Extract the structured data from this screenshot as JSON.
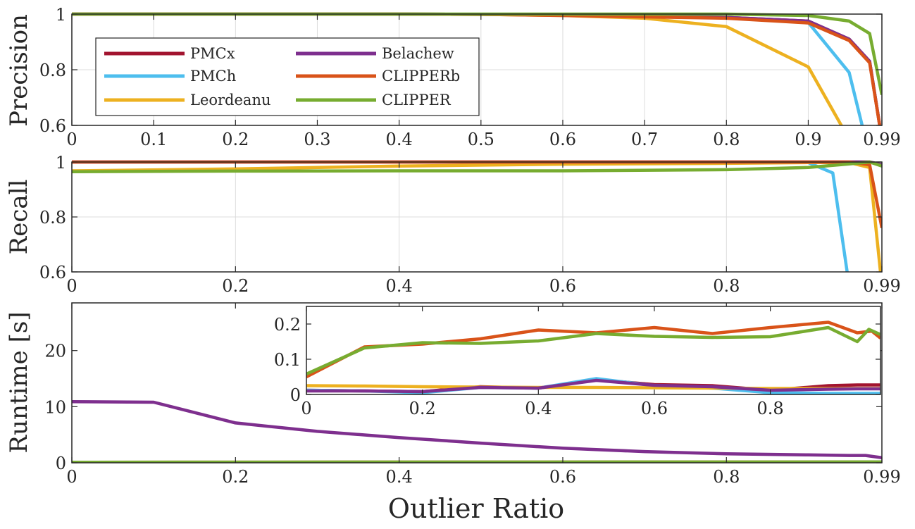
{
  "chart_data": [
    {
      "type": "line",
      "ylabel": "Precision",
      "xlabel": "",
      "ylim": [
        0.6,
        1
      ],
      "xlim": [
        0,
        0.99
      ],
      "grid": true,
      "x_ticks": [
        "0",
        "0.1",
        "0.2",
        "0.3",
        "0.4",
        "0.5",
        "0.6",
        "0.7",
        "0.8",
        "0.9",
        "0.99"
      ],
      "y_ticks": [
        "0.6",
        "0.8",
        "1"
      ],
      "legend": {
        "placement": "inside-upper-left",
        "columns": 2
      },
      "series": [
        {
          "name": "PMCx",
          "color": "#A2142F",
          "x": [
            0,
            0.1,
            0.2,
            0.3,
            0.4,
            0.5,
            0.6,
            0.7,
            0.8,
            0.9,
            0.95,
            0.975,
            0.99
          ],
          "y": [
            1,
            1,
            1,
            1,
            1,
            0.999,
            0.997,
            0.993,
            0.988,
            0.975,
            0.91,
            0.83,
            0.55
          ]
        },
        {
          "name": "PMCh",
          "color": "#4DBEEE",
          "x": [
            0,
            0.1,
            0.2,
            0.3,
            0.4,
            0.5,
            0.6,
            0.7,
            0.8,
            0.9,
            0.95,
            0.97
          ],
          "y": [
            1,
            1,
            1,
            1,
            1,
            0.999,
            0.997,
            0.993,
            0.988,
            0.97,
            0.79,
            0.55
          ]
        },
        {
          "name": "Leordeanu",
          "color": "#EDB120",
          "x": [
            0,
            0.1,
            0.2,
            0.3,
            0.4,
            0.5,
            0.6,
            0.7,
            0.8,
            0.9,
            0.95
          ],
          "y": [
            1,
            1,
            1,
            1,
            1,
            0.999,
            0.995,
            0.985,
            0.955,
            0.81,
            0.55
          ]
        },
        {
          "name": "Belachew",
          "color": "#7E2F8E",
          "x": [
            0,
            0.1,
            0.2,
            0.3,
            0.4,
            0.5,
            0.6,
            0.7,
            0.8,
            0.9,
            0.95,
            0.975,
            0.99
          ],
          "y": [
            1,
            1,
            1,
            1,
            1,
            0.999,
            0.997,
            0.993,
            0.988,
            0.975,
            0.91,
            0.83,
            0.55
          ]
        },
        {
          "name": "CLIPPERb",
          "color": "#D95319",
          "x": [
            0,
            0.1,
            0.2,
            0.3,
            0.4,
            0.5,
            0.6,
            0.7,
            0.8,
            0.9,
            0.95,
            0.975,
            0.99
          ],
          "y": [
            1,
            1,
            1,
            1,
            1,
            0.999,
            0.995,
            0.99,
            0.985,
            0.968,
            0.905,
            0.825,
            0.55
          ]
        },
        {
          "name": "CLIPPER",
          "color": "#77AC30",
          "x": [
            0,
            0.1,
            0.2,
            0.3,
            0.4,
            0.5,
            0.6,
            0.7,
            0.8,
            0.9,
            0.95,
            0.975,
            0.99
          ],
          "y": [
            1,
            1,
            1,
            1,
            1,
            1,
            1,
            1,
            1,
            0.995,
            0.975,
            0.93,
            0.71
          ]
        }
      ]
    },
    {
      "type": "line",
      "ylabel": "Recall",
      "xlabel": "",
      "ylim": [
        0.6,
        1
      ],
      "xlim": [
        0,
        0.99
      ],
      "grid": true,
      "x_ticks": [
        "0",
        "0.2",
        "0.4",
        "0.6",
        "0.8",
        "0.99"
      ],
      "y_ticks": [
        "0.6",
        "0.8",
        "1"
      ],
      "series": [
        {
          "name": "PMCx",
          "color": "#A2142F",
          "x": [
            0,
            0.2,
            0.4,
            0.6,
            0.8,
            0.9,
            0.95,
            0.975,
            0.99
          ],
          "y": [
            1,
            1,
            1,
            1,
            1,
            1,
            1,
            1,
            0.99
          ]
        },
        {
          "name": "PMCh",
          "color": "#4DBEEE",
          "x": [
            0,
            0.2,
            0.4,
            0.6,
            0.8,
            0.9,
            0.93,
            0.95
          ],
          "y": [
            1,
            1,
            1,
            1,
            1,
            0.998,
            0.96,
            0.55
          ]
        },
        {
          "name": "Leordeanu",
          "color": "#EDB120",
          "x": [
            0,
            0.2,
            0.4,
            0.6,
            0.8,
            0.9,
            0.95,
            0.975,
            0.99
          ],
          "y": [
            0.968,
            0.975,
            0.985,
            0.992,
            0.995,
            0.998,
            0.998,
            0.98,
            0.55
          ]
        },
        {
          "name": "Belachew",
          "color": "#7E2F8E",
          "x": [
            0,
            0.2,
            0.4,
            0.6,
            0.8,
            0.9,
            0.95,
            0.975,
            0.99
          ],
          "y": [
            1,
            1,
            1,
            1,
            1,
            1,
            1,
            1,
            0.99
          ]
        },
        {
          "name": "CLIPPERb",
          "color": "#D95319",
          "x": [
            0,
            0.2,
            0.4,
            0.6,
            0.8,
            0.9,
            0.95,
            0.975,
            0.99
          ],
          "y": [
            1,
            1,
            1,
            1,
            1,
            1,
            1,
            0.99,
            0.76
          ]
        },
        {
          "name": "CLIPPER",
          "color": "#77AC30",
          "x": [
            0,
            0.2,
            0.4,
            0.6,
            0.8,
            0.9,
            0.95,
            0.975,
            0.99
          ],
          "y": [
            0.965,
            0.967,
            0.968,
            0.968,
            0.972,
            0.98,
            0.993,
            1,
            0.985
          ]
        }
      ]
    },
    {
      "type": "line",
      "ylabel": "Runtime [s]",
      "xlabel": "Outlier Ratio",
      "ylim": [
        0,
        28.5
      ],
      "xlim": [
        0,
        0.99
      ],
      "grid": false,
      "x_ticks": [
        "0",
        "0.2",
        "0.4",
        "0.6",
        "0.8",
        "0.99"
      ],
      "y_ticks": [
        "0",
        "10",
        "20"
      ],
      "series": [
        {
          "name": "Belachew",
          "color": "#7E2F8E",
          "x": [
            0,
            0.1,
            0.2,
            0.3,
            0.4,
            0.5,
            0.6,
            0.7,
            0.8,
            0.9,
            0.95,
            0.97,
            0.99
          ],
          "y": [
            10.9,
            10.8,
            7.1,
            5.6,
            4.5,
            3.5,
            2.6,
            2.0,
            1.6,
            1.4,
            1.3,
            1.3,
            0.9
          ]
        },
        {
          "name": "PMCx",
          "color": "#A2142F",
          "x": [
            0,
            0.99
          ],
          "y": [
            0.02,
            0.02
          ]
        },
        {
          "name": "PMCh",
          "color": "#4DBEEE",
          "x": [
            0,
            0.99
          ],
          "y": [
            0.02,
            0.02
          ]
        },
        {
          "name": "Leordeanu",
          "color": "#EDB120",
          "x": [
            0,
            0.99
          ],
          "y": [
            0.02,
            0.02
          ]
        },
        {
          "name": "CLIPPERb",
          "color": "#D95319",
          "x": [
            0,
            0.99
          ],
          "y": [
            0.1,
            0.15
          ]
        },
        {
          "name": "CLIPPER",
          "color": "#77AC30",
          "x": [
            0,
            0.99
          ],
          "y": [
            0.1,
            0.15
          ]
        }
      ]
    },
    {
      "type": "line",
      "inset_of": "Runtime [s]",
      "xlim": [
        0,
        0.99
      ],
      "ylim": [
        0,
        0.25
      ],
      "grid": false,
      "x_ticks": [
        "0",
        "0.2",
        "0.4",
        "0.6",
        "0.8"
      ],
      "y_ticks": [
        "0",
        "0.1",
        "0.2"
      ],
      "series": [
        {
          "name": "PMCx",
          "color": "#A2142F",
          "x": [
            0,
            0.1,
            0.2,
            0.3,
            0.4,
            0.5,
            0.6,
            0.7,
            0.8,
            0.9,
            0.95,
            0.99
          ],
          "y": [
            0.012,
            0.01,
            0.008,
            0.022,
            0.018,
            0.042,
            0.028,
            0.025,
            0.012,
            0.025,
            0.027,
            0.027
          ]
        },
        {
          "name": "PMCh",
          "color": "#4DBEEE",
          "x": [
            0,
            0.1,
            0.2,
            0.3,
            0.4,
            0.5,
            0.6,
            0.7,
            0.8,
            0.9,
            0.95,
            0.99
          ],
          "y": [
            0.012,
            0.01,
            0.005,
            0.02,
            0.018,
            0.045,
            0.025,
            0.018,
            0.005,
            0.003,
            0.003,
            0.003
          ]
        },
        {
          "name": "Leordeanu",
          "color": "#EDB120",
          "x": [
            0,
            0.1,
            0.2,
            0.3,
            0.4,
            0.5,
            0.6,
            0.7,
            0.8,
            0.9,
            0.95,
            0.99
          ],
          "y": [
            0.025,
            0.024,
            0.022,
            0.021,
            0.02,
            0.02,
            0.019,
            0.018,
            0.017,
            0.017,
            0.017,
            0.017
          ]
        },
        {
          "name": "Belachew",
          "color": "#7E2F8E",
          "x": [
            0,
            0.1,
            0.2,
            0.3,
            0.4,
            0.5,
            0.6,
            0.7,
            0.8,
            0.9,
            0.95,
            0.99
          ],
          "y": [
            0.01,
            0.01,
            0.008,
            0.02,
            0.018,
            0.04,
            0.026,
            0.022,
            0.012,
            0.015,
            0.016,
            0.016
          ]
        },
        {
          "name": "CLIPPERb",
          "color": "#D95319",
          "x": [
            0,
            0.1,
            0.2,
            0.3,
            0.4,
            0.5,
            0.6,
            0.7,
            0.8,
            0.9,
            0.95,
            0.975,
            0.99
          ],
          "y": [
            0.05,
            0.135,
            0.143,
            0.158,
            0.183,
            0.175,
            0.19,
            0.173,
            0.19,
            0.205,
            0.175,
            0.18,
            0.16
          ]
        },
        {
          "name": "CLIPPER",
          "color": "#77AC30",
          "x": [
            0,
            0.1,
            0.2,
            0.3,
            0.4,
            0.5,
            0.6,
            0.7,
            0.8,
            0.9,
            0.95,
            0.97,
            0.99
          ],
          "y": [
            0.058,
            0.132,
            0.147,
            0.145,
            0.152,
            0.173,
            0.165,
            0.162,
            0.164,
            0.19,
            0.15,
            0.185,
            0.17
          ]
        }
      ]
    }
  ]
}
